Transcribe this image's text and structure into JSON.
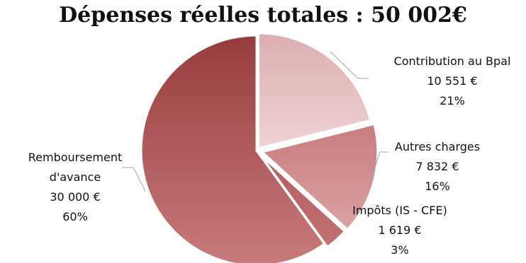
{
  "chart_data": {
    "type": "pie",
    "title": "Dépenses réelles totales : 50 002€",
    "slices": [
      {
        "label_lines": [
          "Contribution au Bpal"
        ],
        "value_text": "10 551 €",
        "percent_text": "21%",
        "value": 10551,
        "color": "#e3b9bb"
      },
      {
        "label_lines": [
          "Autres charges"
        ],
        "value_text": "7 832 €",
        "percent_text": "16%",
        "value": 7832,
        "color": "#cf8a8b"
      },
      {
        "label_lines": [
          "Impôts (IS - CFE)"
        ],
        "value_text": "1 619 €",
        "percent_text": "3%",
        "value": 1619,
        "color": "#b86466"
      },
      {
        "label_lines": [
          "Remboursement",
          "d'avance"
        ],
        "value_text": "30 000 €",
        "percent_text": "60%",
        "value": 30000,
        "color": "#a94f52"
      }
    ],
    "legend": "none"
  }
}
